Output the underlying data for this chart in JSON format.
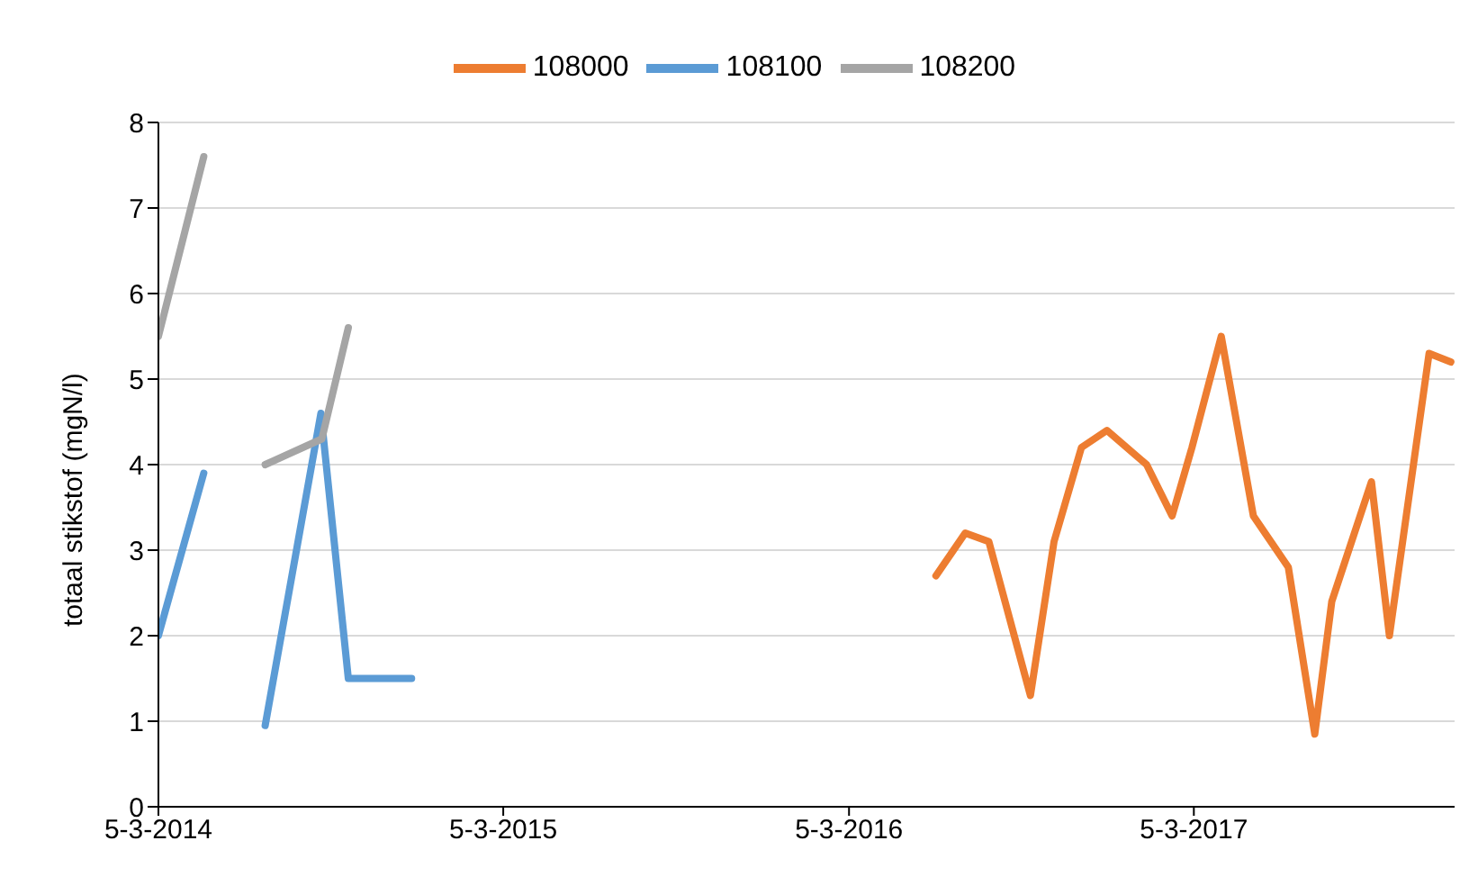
{
  "chart_data": {
    "type": "line",
    "ylabel": "totaal stikstof (mgN/l)",
    "xlim": [
      "2014-03-05",
      "2017-12-06"
    ],
    "xticks": [
      {
        "value": "2014-03-05",
        "label": "5-3-2014"
      },
      {
        "value": "2015-03-05",
        "label": "5-3-2015"
      },
      {
        "value": "2016-03-05",
        "label": "5-3-2016"
      },
      {
        "value": "2017-03-05",
        "label": "5-3-2017"
      }
    ],
    "ylim": [
      0,
      8
    ],
    "yticks": [
      0,
      1,
      2,
      3,
      4,
      5,
      6,
      7,
      8
    ],
    "grid": "y",
    "legend": "top",
    "marker": "none",
    "line_style": "solid",
    "series": [
      {
        "name": "108100",
        "color": "#5b9bd5",
        "x": [
          "2014-03-05",
          "2014-04-22",
          "2014-05-25",
          "2014-06-26",
          "2014-08-24",
          "2014-09-22",
          "2014-11-28"
        ],
        "values": [
          2.0,
          3.9,
          null,
          0.95,
          4.6,
          1.5,
          1.5
        ]
      },
      {
        "name": "108000",
        "color": "#ed7d31",
        "x": [
          "2016-06-05",
          "2016-07-06",
          "2016-07-31",
          "2016-09-13",
          "2016-10-08",
          "2016-11-06",
          "2016-12-03",
          "2017-01-14",
          "2017-02-10",
          "2017-03-03",
          "2017-04-03",
          "2017-05-07",
          "2017-06-13",
          "2017-07-11",
          "2017-07-29",
          "2017-09-09",
          "2017-09-28",
          "2017-11-09",
          "2017-12-02"
        ],
        "values": [
          2.7,
          3.2,
          3.1,
          1.3,
          3.1,
          4.2,
          4.4,
          4.0,
          3.4,
          4.2,
          5.5,
          3.4,
          2.8,
          0.85,
          2.4,
          3.8,
          2.0,
          5.3,
          5.2
        ]
      },
      {
        "name": "108200",
        "color": "#a5a5a5",
        "x": [
          "2014-03-05",
          "2014-04-22",
          "2014-05-25",
          "2014-06-26",
          "2014-08-25",
          "2014-09-22"
        ],
        "values": [
          5.5,
          7.6,
          null,
          4.0,
          4.3,
          5.6
        ]
      }
    ]
  }
}
